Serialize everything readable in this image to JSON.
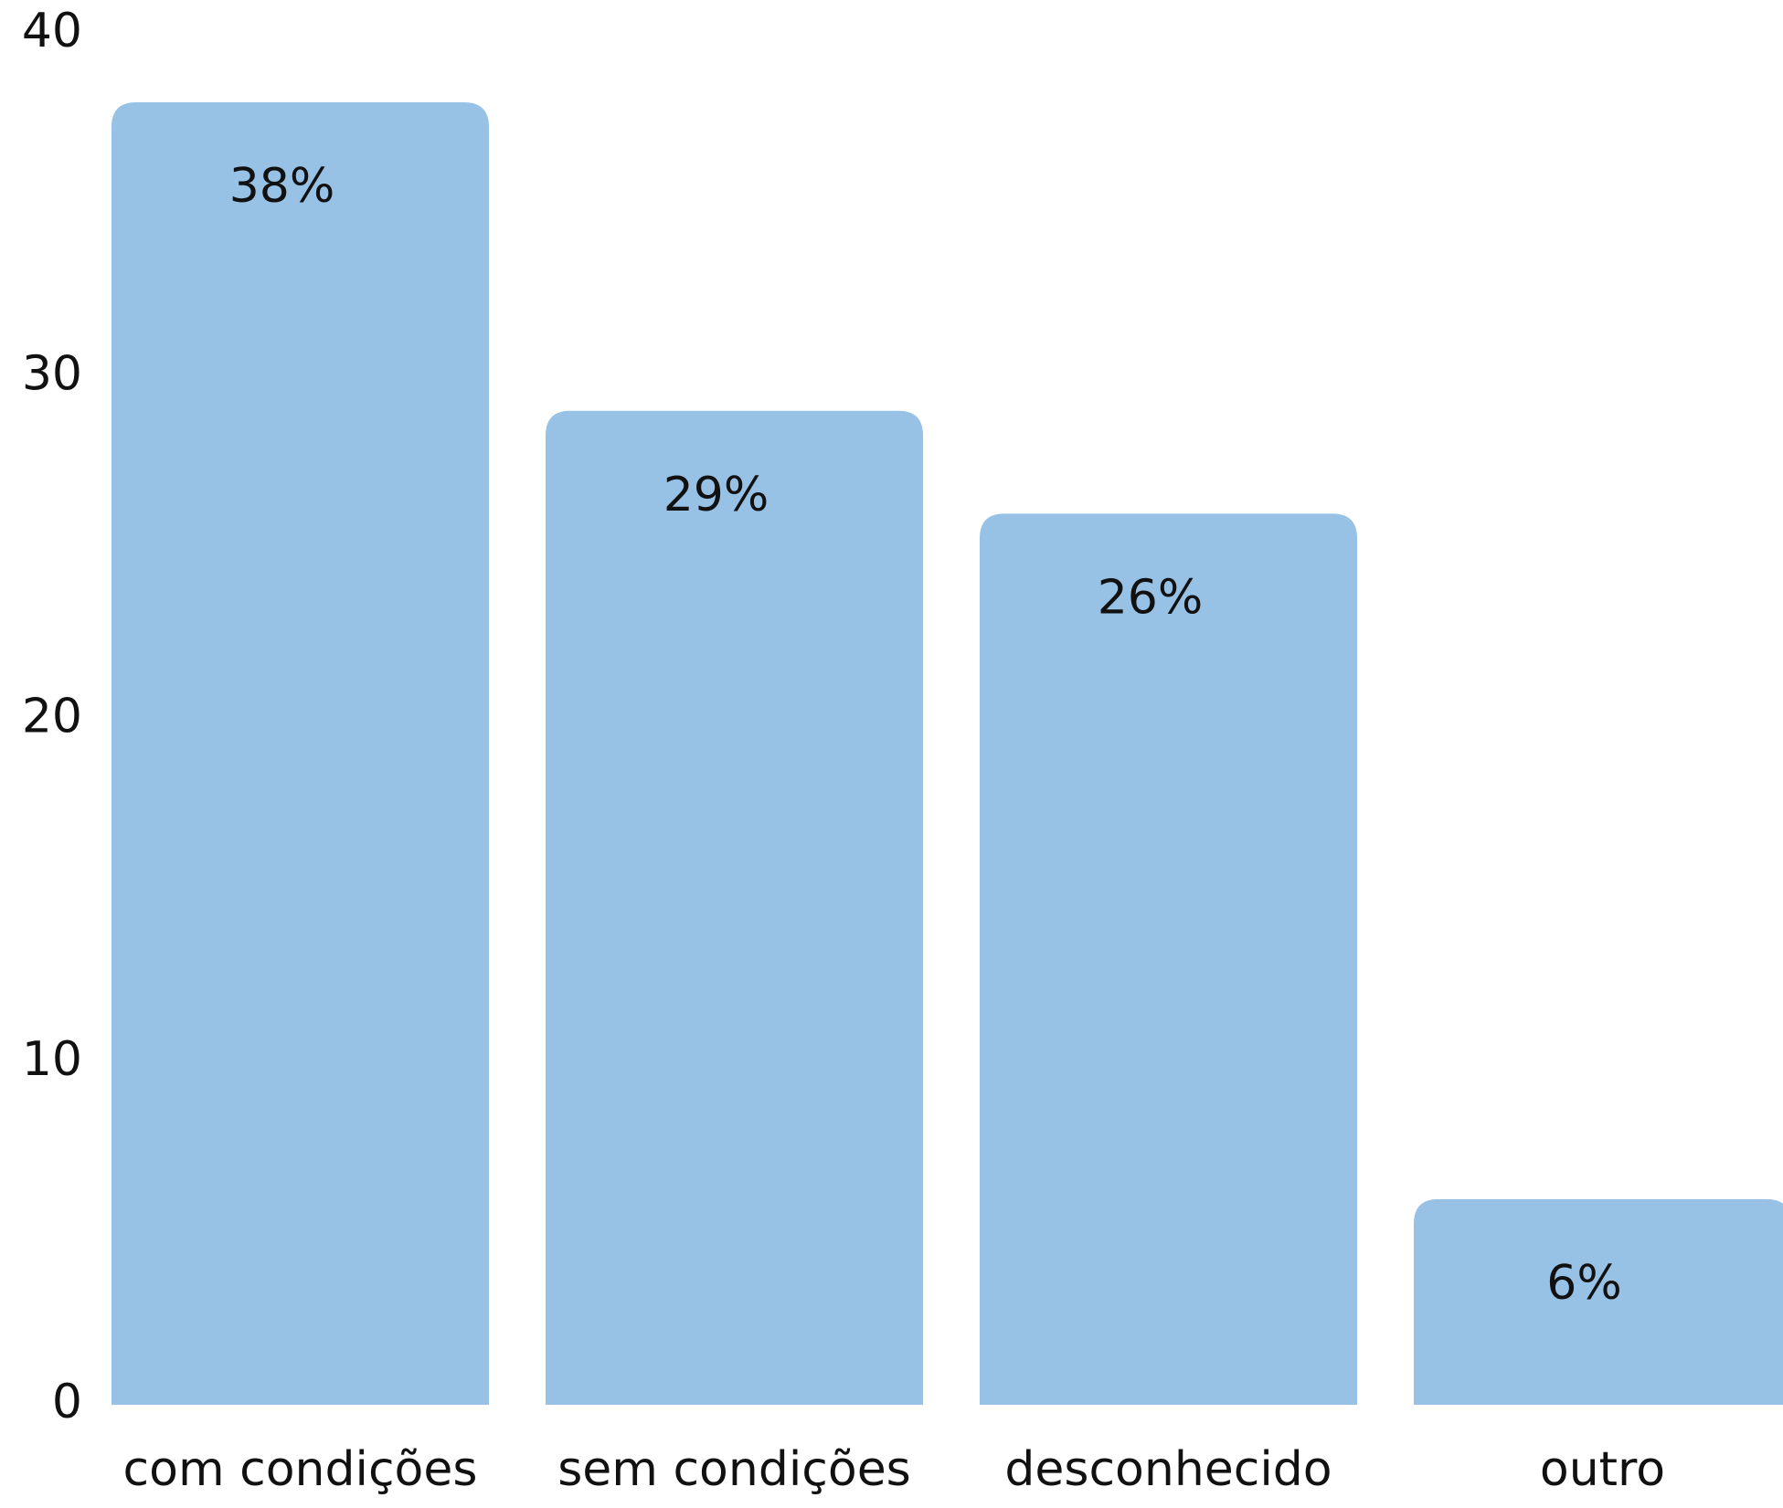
{
  "chart_data": {
    "type": "bar",
    "categories": [
      "com condições",
      "sem condições",
      "desconhecido",
      "outro"
    ],
    "values": [
      38,
      29,
      26,
      6
    ],
    "value_labels": [
      "38%",
      "29%",
      "26%",
      "6%"
    ],
    "color": "#98c1e6",
    "ylim": [
      0,
      40
    ],
    "yticks": [
      0,
      10,
      20,
      30,
      40
    ],
    "grid": false
  }
}
